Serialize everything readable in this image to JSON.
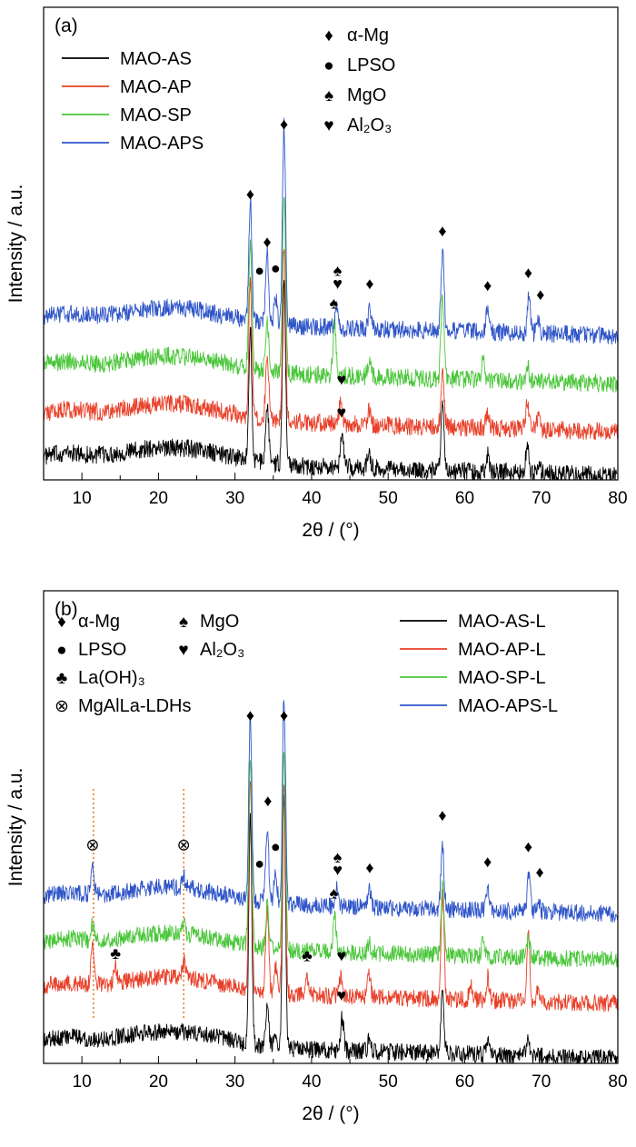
{
  "chart_data": [
    {
      "panel_label": "(a)",
      "type": "line",
      "xlabel": "2θ / (°)",
      "ylabel": "Intensity / a.u.",
      "xlim": [
        5,
        80
      ],
      "xticks": [
        10,
        20,
        30,
        40,
        50,
        60,
        70,
        80
      ],
      "y_ticks_shown": false,
      "grid": false,
      "legend_position": "top-left",
      "series": [
        {
          "name": "MAO-AS",
          "color": "#000000",
          "baseline": 0.0,
          "peaks": [
            [
              32.0,
              3.0
            ],
            [
              34.2,
              1.4
            ],
            [
              36.4,
              4.2
            ],
            [
              44.0,
              0.85
            ],
            [
              47.5,
              0.4
            ],
            [
              57.1,
              1.65
            ],
            [
              63.0,
              0.4
            ],
            [
              68.2,
              0.75
            ],
            [
              69.6,
              0.25
            ]
          ]
        },
        {
          "name": "MAO-AP",
          "color": "#e8402a",
          "baseline": 1.0,
          "peaks": [
            [
              32.0,
              3.2
            ],
            [
              34.2,
              1.5
            ],
            [
              36.4,
              4.0
            ],
            [
              43.8,
              0.6
            ],
            [
              47.5,
              0.35
            ],
            [
              57.1,
              1.3
            ],
            [
              63.0,
              0.35
            ],
            [
              68.2,
              0.65
            ],
            [
              69.6,
              0.3
            ]
          ]
        },
        {
          "name": "MAO-SP",
          "color": "#4ac63a",
          "baseline": 2.1,
          "peaks": [
            [
              32.0,
              3.0
            ],
            [
              34.2,
              1.2
            ],
            [
              36.4,
              4.2
            ],
            [
              43.0,
              1.25
            ],
            [
              47.5,
              0.3
            ],
            [
              57.1,
              1.9
            ],
            [
              62.4,
              0.5
            ],
            [
              68.2,
              0.4
            ]
          ]
        },
        {
          "name": "MAO-APS",
          "color": "#2f55c8",
          "baseline": 3.2,
          "peaks": [
            [
              32.0,
              2.8
            ],
            [
              34.2,
              1.6
            ],
            [
              35.3,
              0.6
            ],
            [
              36.4,
              4.6
            ],
            [
              43.3,
              0.5
            ],
            [
              47.6,
              0.45
            ],
            [
              57.1,
              1.8
            ],
            [
              63.0,
              0.55
            ],
            [
              68.4,
              0.85
            ],
            [
              69.6,
              0.35
            ]
          ]
        }
      ],
      "phase_legend": [
        {
          "symbol": "♦",
          "name": "α-Mg"
        },
        {
          "symbol": "●",
          "name": "LPSO"
        },
        {
          "symbol": "♠",
          "name": "MgO"
        },
        {
          "symbol": "♥",
          "name": "Al₂O₃"
        }
      ],
      "annotations": [
        {
          "symbol": "♦",
          "x": 32.0,
          "y": 5.95
        },
        {
          "symbol": "♦",
          "x": 36.4,
          "y": 7.55
        },
        {
          "symbol": "♦",
          "x": 34.2,
          "y": 4.85
        },
        {
          "symbol": "●",
          "x": 33.2,
          "y": 4.2
        },
        {
          "symbol": "●",
          "x": 35.3,
          "y": 4.25
        },
        {
          "symbol": "♠",
          "x": 43.4,
          "y": 4.2
        },
        {
          "symbol": "♥",
          "x": 43.4,
          "y": 3.9
        },
        {
          "symbol": "♦",
          "x": 47.6,
          "y": 3.9
        },
        {
          "symbol": "♦",
          "x": 57.1,
          "y": 5.1
        },
        {
          "symbol": "♦",
          "x": 63.0,
          "y": 3.85
        },
        {
          "symbol": "♦",
          "x": 68.3,
          "y": 4.15
        },
        {
          "symbol": "♦",
          "x": 69.9,
          "y": 3.65
        },
        {
          "symbol": "♠",
          "x": 42.9,
          "y": 3.45
        },
        {
          "symbol": "♥",
          "x": 43.9,
          "y": 1.7
        },
        {
          "symbol": "♥",
          "x": 43.9,
          "y": 0.95
        }
      ]
    },
    {
      "panel_label": "(b)",
      "type": "line",
      "xlabel": "2θ / (°)",
      "ylabel": "Intensity / a.u.",
      "xlim": [
        5,
        80
      ],
      "xticks": [
        10,
        20,
        30,
        40,
        50,
        60,
        70,
        80
      ],
      "y_ticks_shown": false,
      "grid": false,
      "legend_position": "top-right",
      "series": [
        {
          "name": "MAO-AS-L",
          "color": "#000000",
          "baseline": 0.0,
          "peaks": [
            [
              32.0,
              5.5
            ],
            [
              34.2,
              1.0
            ],
            [
              35.3,
              0.4
            ],
            [
              36.4,
              6.0
            ],
            [
              44.0,
              0.8
            ],
            [
              47.5,
              0.25
            ],
            [
              57.1,
              1.5
            ],
            [
              63.0,
              0.3
            ],
            [
              68.3,
              0.45
            ]
          ]
        },
        {
          "name": "MAO-AP-L",
          "color": "#e8402a",
          "baseline": 1.3,
          "peaks": [
            [
              11.4,
              0.95
            ],
            [
              14.4,
              0.4
            ],
            [
              23.3,
              0.4
            ],
            [
              32.0,
              5.0
            ],
            [
              34.2,
              2.0
            ],
            [
              35.3,
              0.6
            ],
            [
              36.4,
              5.0
            ],
            [
              39.4,
              0.35
            ],
            [
              43.8,
              0.5
            ],
            [
              47.5,
              0.55
            ],
            [
              57.1,
              2.6
            ],
            [
              60.8,
              0.35
            ],
            [
              63.0,
              0.55
            ],
            [
              68.3,
              1.6
            ],
            [
              69.6,
              0.4
            ]
          ]
        },
        {
          "name": "MAO-SP-L",
          "color": "#4ac63a",
          "baseline": 2.35,
          "peaks": [
            [
              11.4,
              0.4
            ],
            [
              23.3,
              0.2
            ],
            [
              32.0,
              4.5
            ],
            [
              34.2,
              1.0
            ],
            [
              36.4,
              4.8
            ],
            [
              43.0,
              0.9
            ],
            [
              47.5,
              0.25
            ],
            [
              57.1,
              1.7
            ],
            [
              62.4,
              0.45
            ],
            [
              68.3,
              0.45
            ]
          ]
        },
        {
          "name": "MAO-APS-L",
          "color": "#2f55c8",
          "baseline": 3.45,
          "peaks": [
            [
              11.4,
              0.75
            ],
            [
              23.3,
              0.3
            ],
            [
              32.0,
              4.5
            ],
            [
              34.2,
              1.8
            ],
            [
              35.3,
              0.7
            ],
            [
              36.4,
              5.0
            ],
            [
              43.3,
              0.4
            ],
            [
              47.6,
              0.4
            ],
            [
              57.1,
              1.5
            ],
            [
              63.0,
              0.55
            ],
            [
              68.4,
              0.9
            ],
            [
              69.6,
              0.3
            ]
          ]
        }
      ],
      "phase_legend": [
        {
          "symbol": "♦",
          "name": "α-Mg"
        },
        {
          "symbol": "♠",
          "name": "MgO"
        },
        {
          "symbol": "●",
          "name": "LPSO"
        },
        {
          "symbol": "♥",
          "name": "Al₂O₃"
        },
        {
          "symbol": "♣",
          "name": "La(OH)₃"
        },
        {
          "symbol": "⊗",
          "name": "MgAlLa-LDHs"
        }
      ],
      "annotations": [
        {
          "symbol": "♦",
          "x": 32.0,
          "y": 7.7
        },
        {
          "symbol": "♦",
          "x": 36.4,
          "y": 7.7
        },
        {
          "symbol": "♦",
          "x": 34.3,
          "y": 5.65
        },
        {
          "symbol": "●",
          "x": 35.3,
          "y": 4.55
        },
        {
          "symbol": "●",
          "x": 33.2,
          "y": 4.15
        },
        {
          "symbol": "♠",
          "x": 43.4,
          "y": 4.3
        },
        {
          "symbol": "♥",
          "x": 43.4,
          "y": 4.0
        },
        {
          "symbol": "♦",
          "x": 47.6,
          "y": 4.05
        },
        {
          "symbol": "♦",
          "x": 57.1,
          "y": 5.3
        },
        {
          "symbol": "♦",
          "x": 63.0,
          "y": 4.2
        },
        {
          "symbol": "♦",
          "x": 68.3,
          "y": 4.55
        },
        {
          "symbol": "♦",
          "x": 69.8,
          "y": 3.95
        },
        {
          "symbol": "♠",
          "x": 42.9,
          "y": 3.45
        },
        {
          "symbol": "♣",
          "x": 14.4,
          "y": 2.0
        },
        {
          "symbol": "♣",
          "x": 39.4,
          "y": 1.95
        },
        {
          "symbol": "♥",
          "x": 43.9,
          "y": 1.95
        },
        {
          "symbol": "♥",
          "x": 43.9,
          "y": 1.0
        },
        {
          "symbol": "⊗",
          "x": 11.4,
          "y": 4.6
        },
        {
          "symbol": "⊗",
          "x": 23.3,
          "y": 4.6
        }
      ],
      "guide_lines_x": [
        11.5,
        23.3
      ],
      "guide_line_color": "#e8802a"
    }
  ]
}
